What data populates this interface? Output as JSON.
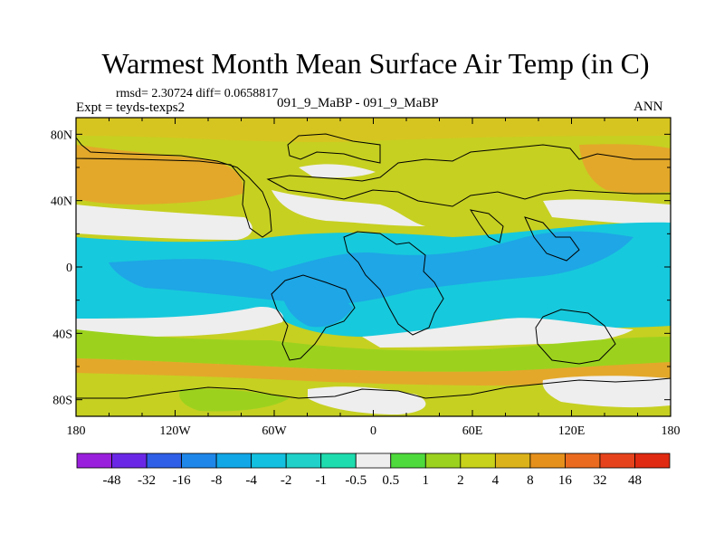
{
  "figure": {
    "title": "Warmest Month Mean Surface Air Temp (in C)",
    "stats_line": "rmsd= 2.30724 diff= 0.0658817",
    "left_label": "Expt = teyds-texps2",
    "center_label": "091_9_MaBP - 091_9_MaBP",
    "right_label": "ANN"
  },
  "axes": {
    "x_ticks": [
      {
        "value": -180,
        "label": "180"
      },
      {
        "value": -120,
        "label": "120W"
      },
      {
        "value": -60,
        "label": "60W"
      },
      {
        "value": 0,
        "label": "0"
      },
      {
        "value": 60,
        "label": "60E"
      },
      {
        "value": 120,
        "label": "120E"
      },
      {
        "value": 180,
        "label": "180"
      }
    ],
    "y_ticks": [
      {
        "value": 80,
        "label": "80N"
      },
      {
        "value": 40,
        "label": "40N"
      },
      {
        "value": 0,
        "label": "0"
      },
      {
        "value": -40,
        "label": "40S"
      },
      {
        "value": -80,
        "label": "80S"
      }
    ],
    "lon_range": [
      -180,
      180
    ],
    "lat_range": [
      -90,
      90
    ]
  },
  "colorbar": {
    "labels": [
      "-48",
      "-32",
      "-16",
      "-8",
      "-4",
      "-2",
      "-1",
      "-0.5",
      "0.5",
      "1",
      "2",
      "4",
      "8",
      "16",
      "32",
      "48"
    ],
    "colors": [
      "#9a1fdc",
      "#6a28e6",
      "#2f5fe6",
      "#1e86e8",
      "#11a6e6",
      "#13c0df",
      "#1fd1c8",
      "#1edcae",
      "#eeeeee",
      "#4ed93c",
      "#9bd11f",
      "#c9d21a",
      "#dcb21a",
      "#e6901c",
      "#ea6a1f",
      "#e6431c",
      "#e02a12"
    ]
  },
  "field_colors": {
    "orange": "#e3a82a",
    "yellow_green": "#c6d021",
    "green": "#9cd21e",
    "white": "#eeeeee",
    "cyan": "#17c9dc",
    "blue": "#1ea6e6",
    "teal": "#21d8b8"
  }
}
